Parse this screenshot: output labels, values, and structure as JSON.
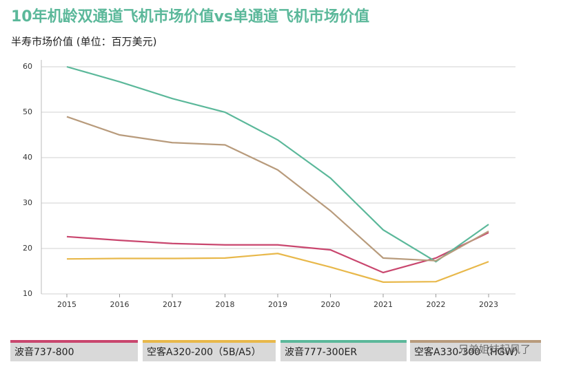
{
  "chart_data": {
    "type": "line",
    "title": "10年机龄双通道飞机市场价值vs单通道飞机市场价值",
    "subtitle": "半寿市场价值 (单位：百万美元)",
    "categories": [
      "2015",
      "2016",
      "2017",
      "2018",
      "2019",
      "2020",
      "2021",
      "2022",
      "2023"
    ],
    "series": [
      {
        "name": "波音737-800",
        "color": "#c9466e",
        "values": [
          22.6,
          21.8,
          21.1,
          20.8,
          20.8,
          19.7,
          14.7,
          17.9,
          23.5
        ]
      },
      {
        "name": "空客A320-200（5B/A5）",
        "color": "#e8b84a",
        "values": [
          17.7,
          17.8,
          17.8,
          17.9,
          18.9,
          15.9,
          12.6,
          12.7,
          17.1
        ]
      },
      {
        "name": "波音777-300ER",
        "color": "#5bb89a",
        "values": [
          60,
          56.7,
          53,
          50,
          43.9,
          35.5,
          24.1,
          17.1,
          25.3
        ]
      },
      {
        "name": "空客A330-300（HGW）",
        "color": "#b89b7c",
        "values": [
          49,
          45,
          43.3,
          42.8,
          37.3,
          28.3,
          17.9,
          17.3,
          23.8
        ]
      }
    ],
    "ylim": [
      10,
      60
    ],
    "yticks": [
      10,
      20,
      30,
      40,
      50,
      60
    ],
    "grid": true,
    "watermark": "兄弟姐妹起风了"
  }
}
